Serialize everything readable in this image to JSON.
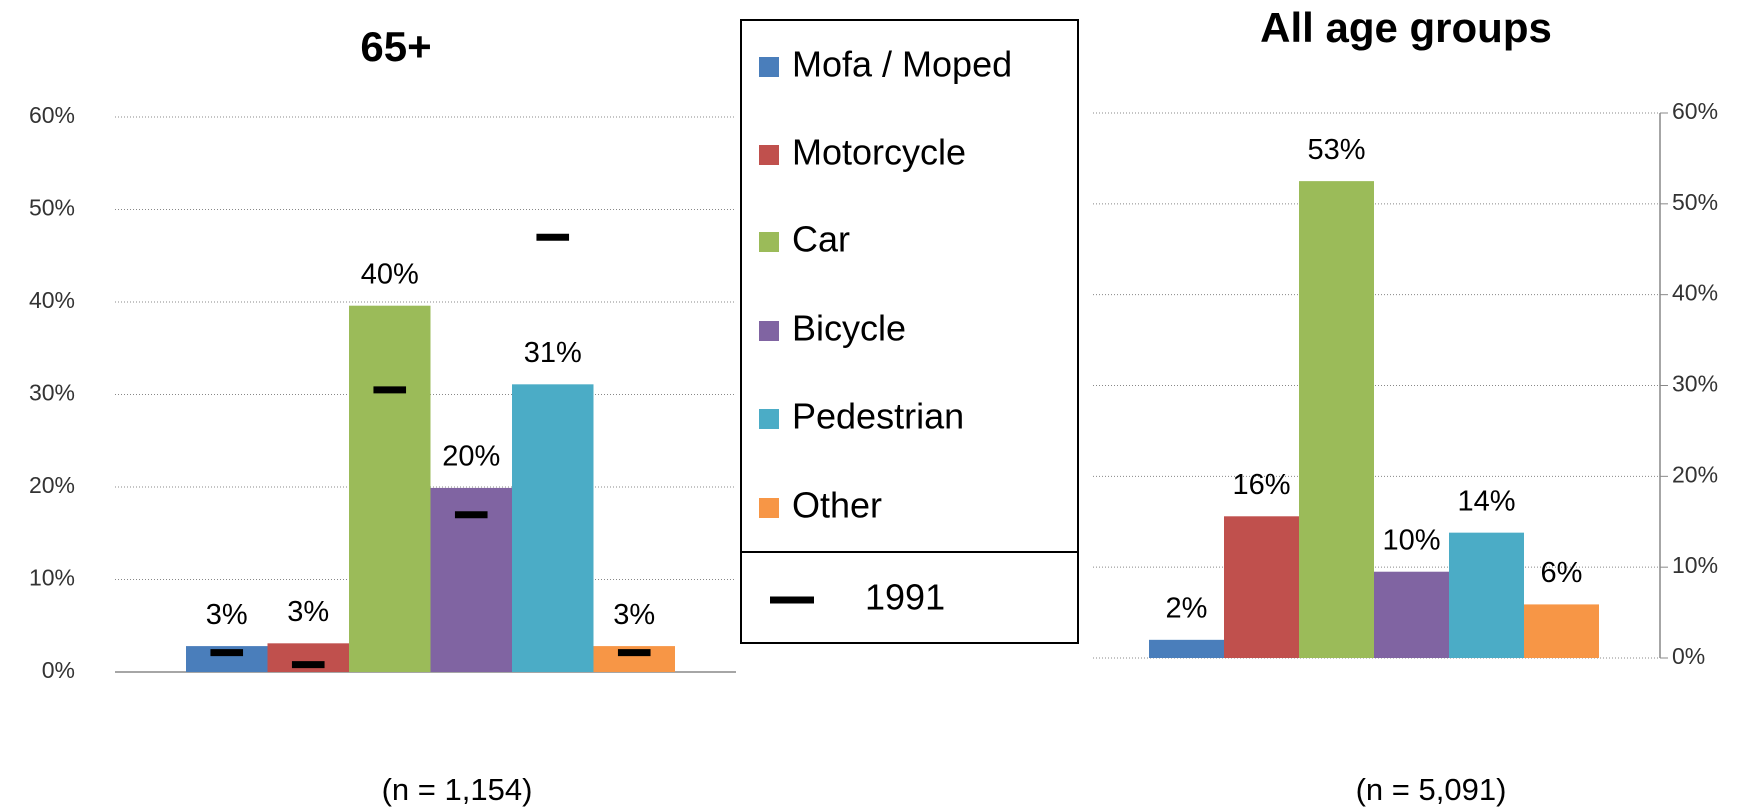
{
  "legend": {
    "categories": [
      "Mofa / Moped",
      "Motorcycle",
      "Car",
      "Bicycle",
      "Pedestrian",
      "Other"
    ],
    "colors": [
      "#4a7ebb",
      "#c0504d",
      "#9bbb59",
      "#8064a2",
      "#4bacc6",
      "#f79646"
    ]
  },
  "chart_data": [
    {
      "type": "bar",
      "title": "65+",
      "subtitle": "(n = 1,154)",
      "values": [
        2.8,
        3.1,
        39.6,
        19.9,
        31.1,
        2.8
      ],
      "value_labels": [
        "3%",
        "3%",
        "40%",
        "20%",
        "31%",
        "3%"
      ],
      "markers": {
        "name": "1991",
        "color": "#000000",
        "values": [
          2.1,
          0.8,
          30.5,
          17,
          47,
          2.1
        ]
      },
      "ylim": [
        0,
        60
      ],
      "yticks": [
        {
          "value": 0,
          "label": "0%"
        },
        {
          "value": 10,
          "label": "10%"
        },
        {
          "value": 20,
          "label": "20%"
        },
        {
          "value": 30,
          "label": "30%"
        },
        {
          "value": 40,
          "label": "40%"
        },
        {
          "value": 50,
          "label": "50%"
        },
        {
          "value": 60,
          "label": "60%"
        }
      ],
      "grid": true,
      "axis_side": "left"
    },
    {
      "type": "bar",
      "title": "All age groups",
      "subtitle": "(n = 5,091)",
      "values": [
        2,
        15.6,
        52.5,
        9.5,
        13.8,
        5.9
      ],
      "value_labels": [
        "2%",
        "16%",
        "53%",
        "10%",
        "14%",
        "6%"
      ],
      "ylim": [
        0,
        60
      ],
      "yticks": [
        {
          "value": 0,
          "label": "0%"
        },
        {
          "value": 10,
          "label": "10%"
        },
        {
          "value": 20,
          "label": "20%"
        },
        {
          "value": 30,
          "label": "30%"
        },
        {
          "value": 40,
          "label": "40%"
        },
        {
          "value": 50,
          "label": "50%"
        },
        {
          "value": 60,
          "label": "60%"
        }
      ],
      "grid": true,
      "axis_side": "right"
    }
  ]
}
